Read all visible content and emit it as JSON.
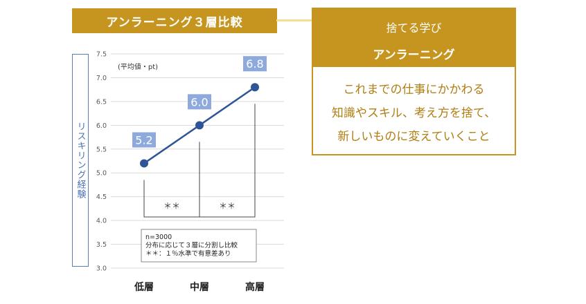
{
  "title_banner": "アンラーニング３層比較",
  "right_card": {
    "subtitle": "捨てる学び",
    "title": "アンラーニング",
    "lines": [
      "これまでの仕事にかかわる",
      "知識やスキル、考え方を捨て、",
      "新しいものに変えていくこと"
    ]
  },
  "colors": {
    "accent": "#c5951f",
    "line": "#2f5597",
    "label_box": "#8ea9db",
    "text_gold": "#b07d12"
  },
  "chart_data": {
    "type": "line",
    "unit_label": "(平均値・pt)",
    "ylabel": "リスキリング経験",
    "categories": [
      "低層",
      "中層",
      "高層"
    ],
    "values": [
      5.2,
      6.0,
      6.8
    ],
    "data_labels": [
      "5.2",
      "6.0",
      "6.8"
    ],
    "ylim": [
      3.0,
      7.5
    ],
    "yticks": [
      "3.0",
      "3.5",
      "4.0",
      "4.5",
      "5.0",
      "5.5",
      "6.0",
      "6.5",
      "7.0",
      "7.5"
    ],
    "grid": true,
    "significance": [
      "＊＊",
      "＊＊"
    ],
    "note_lines": [
      "n=3000",
      "分布に応じて３層に分割し比較",
      "＊＊：１％水準で有意差あり"
    ]
  }
}
